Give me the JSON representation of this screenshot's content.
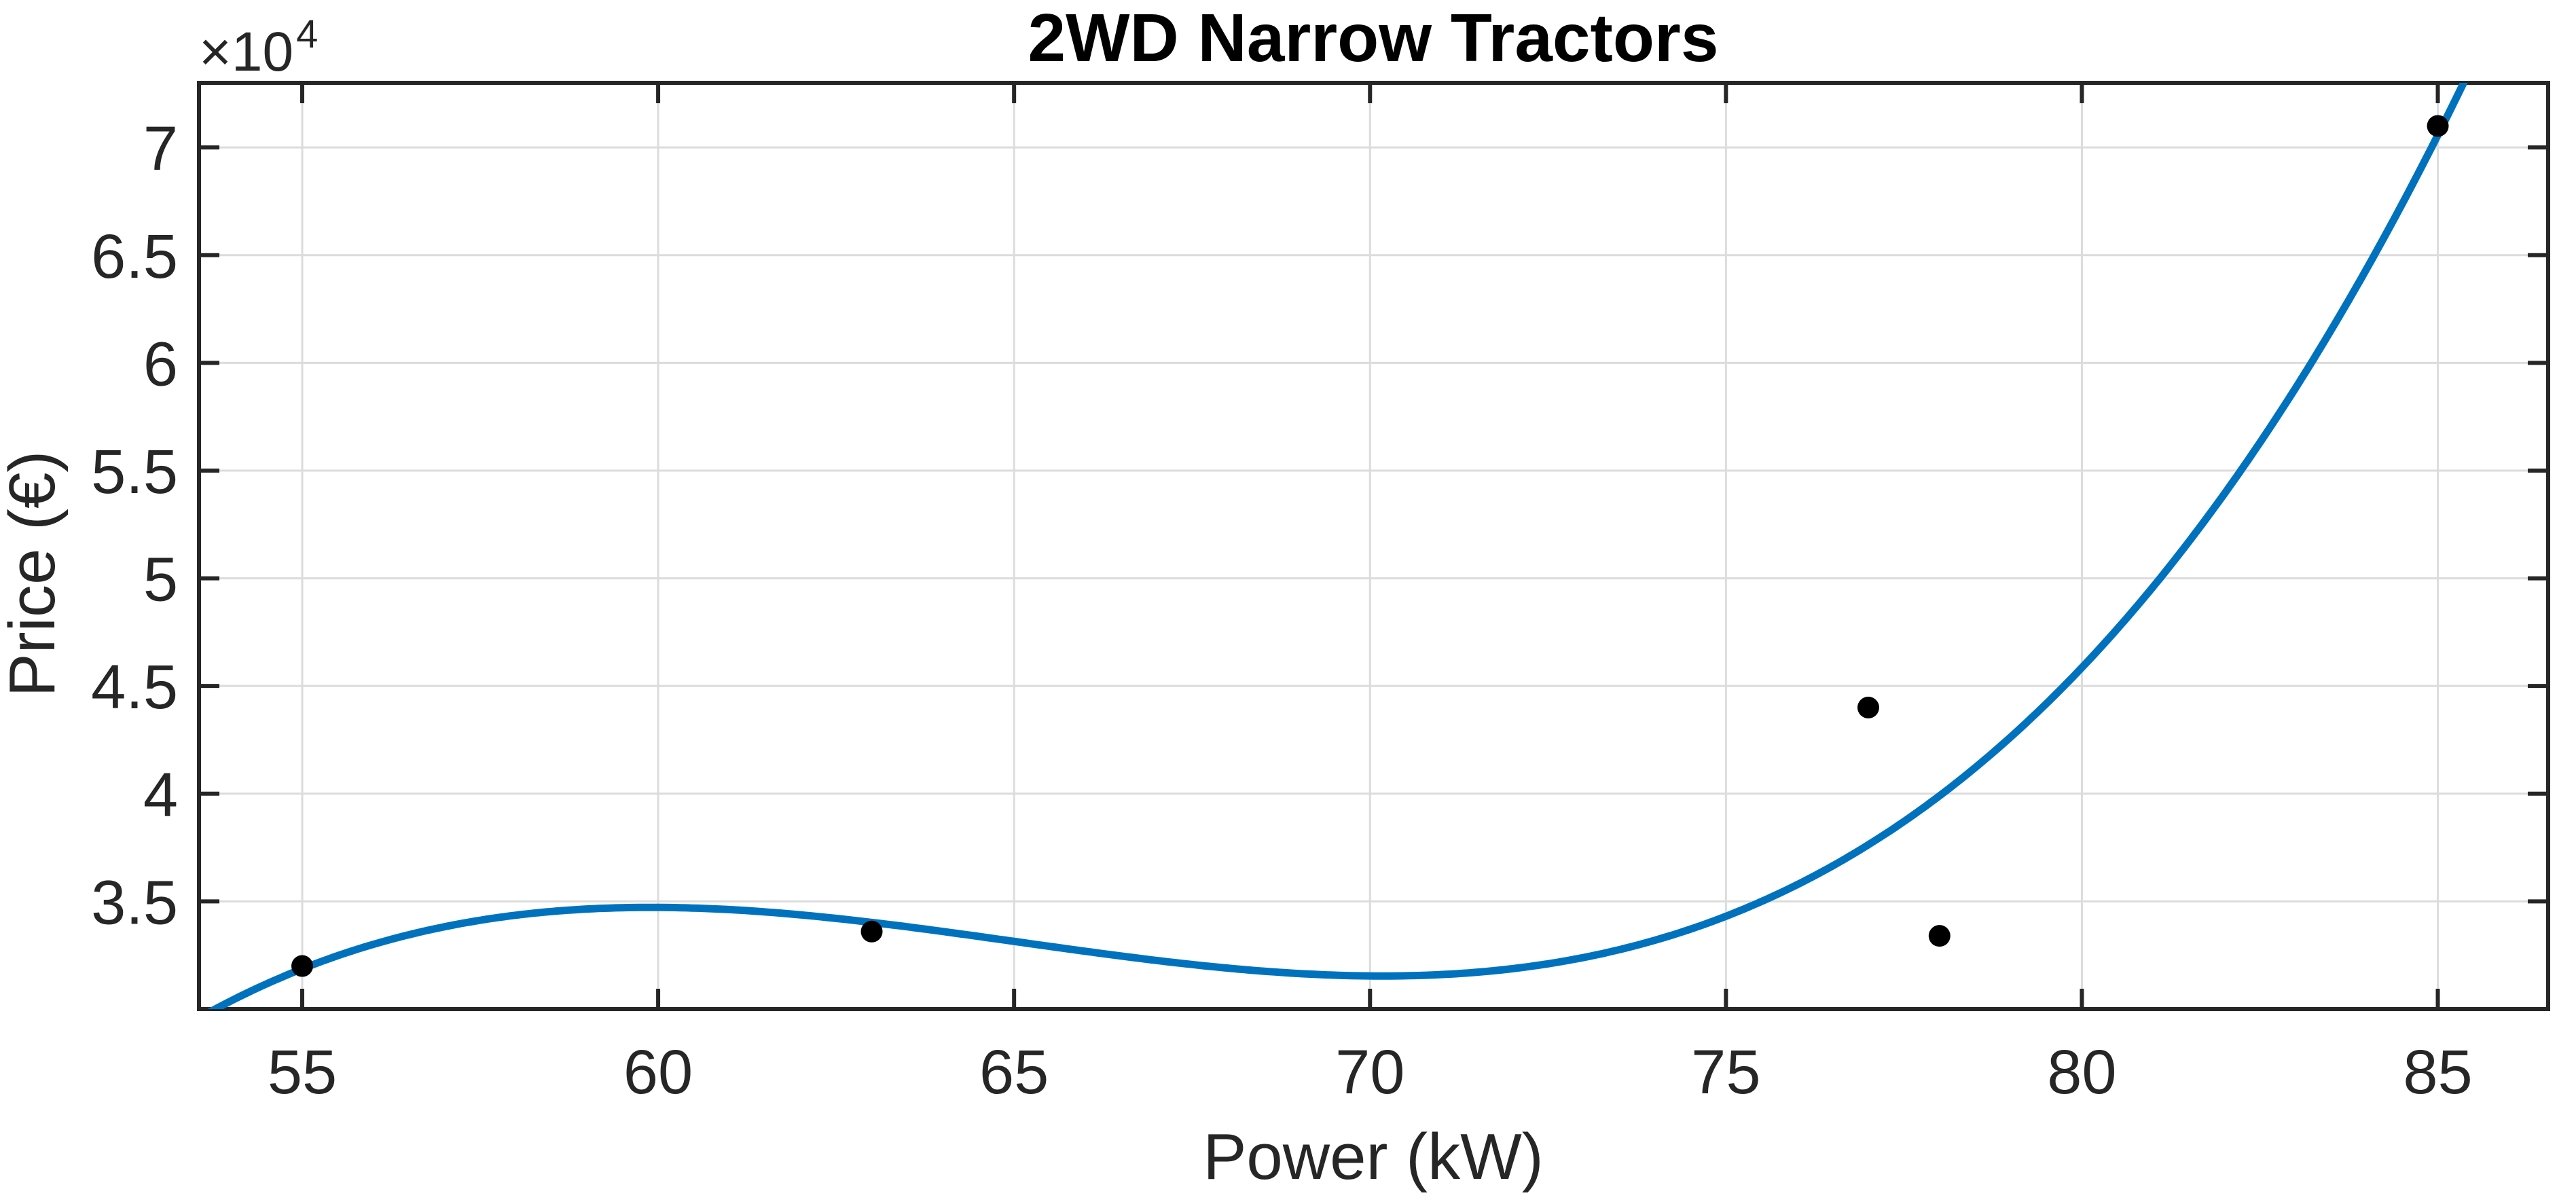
{
  "figure": {
    "background_color": "#ffffff"
  },
  "chart_data": {
    "type": "scatter",
    "title": "2WD Narrow Tractors",
    "xlabel": "Power (kW)",
    "ylabel": "Price (€)",
    "y_exponent_label": {
      "base": "×10",
      "exponent": "4"
    },
    "grid": true,
    "legend": null,
    "xlim": [
      53.55,
      86.55
    ],
    "ylim": [
      30000,
      73000
    ],
    "x_ticks": [
      {
        "value": 55,
        "label": "55"
      },
      {
        "value": 60,
        "label": "60"
      },
      {
        "value": 65,
        "label": "65"
      },
      {
        "value": 70,
        "label": "70"
      },
      {
        "value": 75,
        "label": "75"
      },
      {
        "value": 80,
        "label": "80"
      },
      {
        "value": 85,
        "label": "85"
      }
    ],
    "y_ticks": [
      {
        "value": 35000,
        "label": "3.5"
      },
      {
        "value": 40000,
        "label": "4"
      },
      {
        "value": 45000,
        "label": "4.5"
      },
      {
        "value": 50000,
        "label": "5"
      },
      {
        "value": 55000,
        "label": "5.5"
      },
      {
        "value": 60000,
        "label": "6"
      },
      {
        "value": 65000,
        "label": "6.5"
      },
      {
        "value": 70000,
        "label": "7"
      }
    ],
    "series": [
      {
        "name": "tractor-data-points",
        "type": "scatter",
        "marker": "dot",
        "color": "#000000",
        "points": [
          {
            "x": 55,
            "y": 32000
          },
          {
            "x": 63,
            "y": 33600
          },
          {
            "x": 77,
            "y": 44000
          },
          {
            "x": 78,
            "y": 33400
          },
          {
            "x": 85,
            "y": 71000
          }
        ]
      },
      {
        "name": "cubic-fit-curve",
        "type": "line",
        "color": "#0072BD",
        "fit": "least-squares cubic polynomial of tractor-data-points",
        "degree": 3
      }
    ],
    "colors": {
      "curve": "#0072BD",
      "points": "#000000",
      "grid": "#dcdcdc",
      "axis": "#262626",
      "background": "#ffffff"
    }
  }
}
